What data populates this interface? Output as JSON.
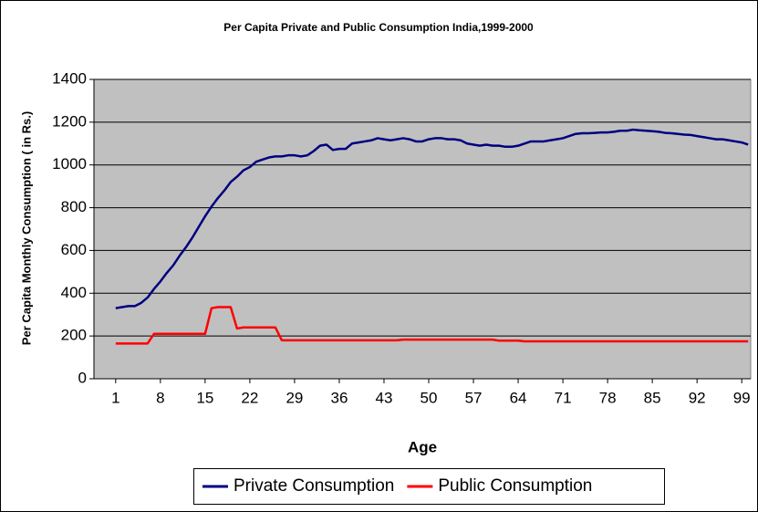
{
  "chart_data": {
    "type": "line",
    "title": "Per Capita Private and Public Consumption India,1999-2000",
    "x_label": "Age",
    "y_label": "Per Capita Monthly Consumption ( in Rs.)",
    "x": [
      1,
      2,
      3,
      4,
      5,
      6,
      7,
      8,
      9,
      10,
      11,
      12,
      13,
      14,
      15,
      16,
      17,
      18,
      19,
      20,
      21,
      22,
      23,
      24,
      25,
      26,
      27,
      28,
      29,
      30,
      31,
      32,
      33,
      34,
      35,
      36,
      37,
      38,
      39,
      40,
      41,
      42,
      43,
      44,
      45,
      46,
      47,
      48,
      49,
      50,
      51,
      52,
      53,
      54,
      55,
      56,
      57,
      58,
      59,
      60,
      61,
      62,
      63,
      64,
      65,
      66,
      67,
      68,
      69,
      70,
      71,
      72,
      73,
      74,
      75,
      76,
      77,
      78,
      79,
      80,
      81,
      82,
      83,
      84,
      85,
      86,
      87,
      88,
      89,
      90,
      91,
      92,
      93,
      94,
      95,
      96,
      97,
      98,
      99,
      100
    ],
    "xlim": [
      -2.4,
      100.4
    ],
    "xticks": [
      1,
      8,
      15,
      22,
      29,
      36,
      43,
      50,
      57,
      64,
      71,
      78,
      85,
      92,
      99
    ],
    "ylim": [
      0,
      1400
    ],
    "yticks": [
      0,
      200,
      400,
      600,
      800,
      1000,
      1200,
      1400
    ],
    "grid": true,
    "legend": "bottom",
    "series": [
      {
        "name": "Private Consumption",
        "color": "#000080",
        "values": [
          330,
          335,
          340,
          340,
          355,
          380,
          420,
          455,
          495,
          530,
          575,
          615,
          660,
          710,
          760,
          805,
          845,
          880,
          920,
          945,
          975,
          990,
          1015,
          1025,
          1035,
          1040,
          1040,
          1045,
          1045,
          1040,
          1045,
          1065,
          1090,
          1095,
          1070,
          1075,
          1075,
          1100,
          1105,
          1110,
          1115,
          1125,
          1120,
          1115,
          1120,
          1125,
          1120,
          1110,
          1110,
          1120,
          1125,
          1125,
          1120,
          1120,
          1115,
          1100,
          1095,
          1090,
          1095,
          1090,
          1090,
          1085,
          1085,
          1090,
          1100,
          1110,
          1110,
          1110,
          1115,
          1120,
          1125,
          1135,
          1145,
          1148,
          1148,
          1150,
          1152,
          1152,
          1155,
          1160,
          1160,
          1165,
          1162,
          1160,
          1158,
          1155,
          1150,
          1148,
          1145,
          1142,
          1140,
          1135,
          1130,
          1125,
          1120,
          1120,
          1115,
          1110,
          1105,
          1095
        ]
      },
      {
        "name": "Public Consumption",
        "color": "#ff0000",
        "values": [
          165,
          165,
          165,
          165,
          165,
          165,
          210,
          210,
          210,
          210,
          210,
          210,
          210,
          210,
          210,
          330,
          335,
          335,
          335,
          235,
          240,
          240,
          240,
          240,
          240,
          240,
          180,
          180,
          180,
          180,
          180,
          180,
          180,
          180,
          180,
          180,
          180,
          180,
          180,
          180,
          180,
          180,
          180,
          180,
          180,
          183,
          183,
          183,
          183,
          183,
          183,
          183,
          183,
          183,
          183,
          183,
          183,
          183,
          183,
          183,
          178,
          178,
          178,
          178,
          175,
          175,
          175,
          175,
          175,
          175,
          175,
          175,
          175,
          175,
          175,
          175,
          175,
          175,
          175,
          175,
          175,
          175,
          175,
          175,
          175,
          175,
          175,
          175,
          175,
          175,
          175,
          175,
          175,
          175,
          175,
          175,
          175,
          175,
          175,
          175
        ]
      }
    ]
  }
}
